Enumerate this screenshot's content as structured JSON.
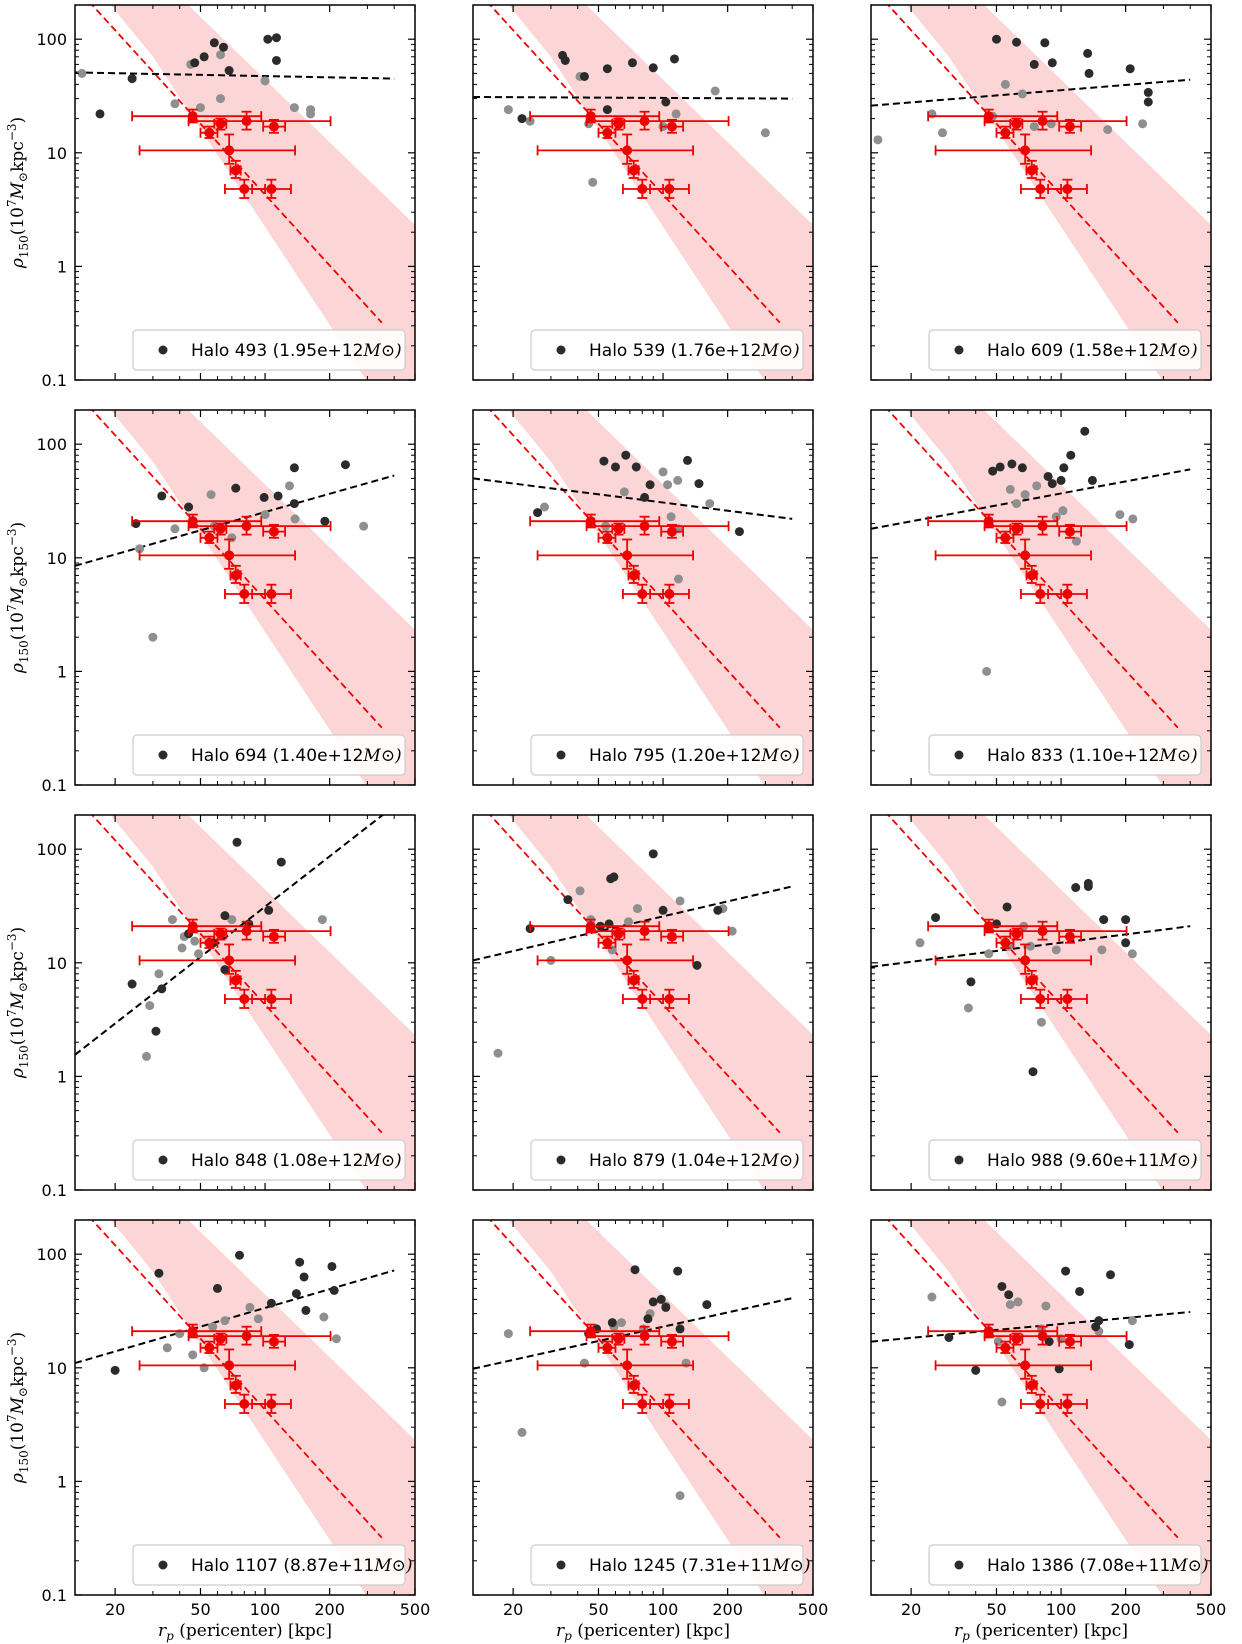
{
  "figure": {
    "colors": {
      "observed": "#ee0000",
      "observed_band": "#fcd6d6",
      "fit_line": "#000000",
      "point_dark": "#2b2b2b",
      "point_light": "#8f8f8f"
    }
  },
  "chart_data": {
    "type": "scatter",
    "x_scale": "log",
    "y_scale": "log",
    "xlim": [
      13,
      500
    ],
    "ylim": [
      0.1,
      200
    ],
    "xticks": [
      20,
      50,
      100,
      200,
      500
    ],
    "yticks": [
      0.1,
      1,
      10,
      100
    ],
    "xtick_labels": [
      "20",
      "50",
      "100",
      "200",
      "500"
    ],
    "ytick_labels": [
      "0.1",
      "1",
      "10",
      "100"
    ],
    "xlabel": "r_p (pericenter) [kpc]",
    "ylabel": "ρ150(10^7 M⊙ kpc^−3)",
    "observed_data": [
      {
        "x": 46,
        "y": 21,
        "xerr": [
          22,
          50
        ],
        "yerr": [
          2.5,
          3
        ]
      },
      {
        "x": 55,
        "y": 15,
        "xerr": [
          5,
          5
        ],
        "yerr": [
          1.5,
          2
        ]
      },
      {
        "x": 62,
        "y": 18,
        "xerr": [
          4,
          4
        ],
        "yerr": [
          2,
          2
        ]
      },
      {
        "x": 68,
        "y": 10.5,
        "xerr": [
          42,
          70
        ],
        "yerr": [
          2.5,
          4
        ]
      },
      {
        "x": 73,
        "y": 7,
        "xerr": [
          4,
          4
        ],
        "yerr": [
          1,
          1.5
        ]
      },
      {
        "x": 80,
        "y": 4.8,
        "xerr": [
          15,
          20
        ],
        "yerr": [
          0.8,
          1
        ]
      },
      {
        "x": 82,
        "y": 19,
        "xerr": [
          38,
          120
        ],
        "yerr": [
          3,
          4
        ]
      },
      {
        "x": 107,
        "y": 4.8,
        "xerr": [
          20,
          25
        ],
        "yerr": [
          0.8,
          1
        ]
      },
      {
        "x": 110,
        "y": 17,
        "xerr": [
          12,
          14
        ],
        "yerr": [
          2,
          2.5
        ]
      }
    ],
    "observed_fit": {
      "x1": 20,
      "y1": 120,
      "x2": 350,
      "y2": 0.32,
      "band_spread_end": 0.08
    },
    "panels": [
      {
        "label": "Halo 493 (1.95e+12",
        "unit": "M⊙)",
        "fit": {
          "y_at_13": 51,
          "y_at_400": 45
        },
        "dark": [
          [
            17,
            22
          ],
          [
            24,
            45
          ],
          [
            47,
            62
          ],
          [
            52,
            70
          ],
          [
            58,
            93
          ],
          [
            64,
            85
          ],
          [
            68,
            53
          ],
          [
            103,
            100
          ],
          [
            113,
            103
          ],
          [
            113,
            65
          ]
        ],
        "light": [
          [
            14,
            50
          ],
          [
            38,
            27
          ],
          [
            45,
            60
          ],
          [
            50,
            25
          ],
          [
            62,
            30
          ],
          [
            62,
            73
          ],
          [
            100,
            43
          ],
          [
            137,
            25
          ],
          [
            163,
            22
          ],
          [
            163,
            24
          ]
        ]
      },
      {
        "label": "Halo 539 (1.76e+12",
        "unit": "M⊙)",
        "fit": {
          "y_at_13": 31,
          "y_at_400": 30
        },
        "dark": [
          [
            22,
            20
          ],
          [
            34,
            72
          ],
          [
            35,
            65
          ],
          [
            43,
            47
          ],
          [
            55,
            55
          ],
          [
            72,
            62
          ],
          [
            90,
            56
          ],
          [
            103,
            28
          ],
          [
            113,
            67
          ],
          [
            55,
            24
          ]
        ],
        "light": [
          [
            19,
            24
          ],
          [
            24,
            19
          ],
          [
            41,
            47
          ],
          [
            45,
            18
          ],
          [
            47,
            5.5
          ],
          [
            62,
            19
          ],
          [
            100,
            17
          ],
          [
            115,
            22
          ],
          [
            175,
            35
          ],
          [
            300,
            15
          ]
        ]
      },
      {
        "label": "Halo 609 (1.58e+12",
        "unit": "M⊙)",
        "fit": {
          "y_at_13": 26,
          "y_at_400": 44
        },
        "dark": [
          [
            50,
            100
          ],
          [
            62,
            94
          ],
          [
            84,
            93
          ],
          [
            75,
            60
          ],
          [
            91,
            62
          ],
          [
            133,
            75
          ],
          [
            135,
            50
          ],
          [
            210,
            55
          ],
          [
            255,
            34
          ],
          [
            255,
            28
          ]
        ],
        "light": [
          [
            14,
            13
          ],
          [
            25,
            22
          ],
          [
            28,
            15
          ],
          [
            48,
            21
          ],
          [
            55,
            40
          ],
          [
            66,
            33
          ],
          [
            75,
            17
          ],
          [
            90,
            18
          ],
          [
            165,
            16
          ],
          [
            240,
            18
          ]
        ]
      },
      {
        "label": "Halo 694 (1.40e+12",
        "unit": "M⊙)",
        "fit": {
          "y_at_13": 8.5,
          "y_at_400": 53
        },
        "dark": [
          [
            25,
            20
          ],
          [
            33,
            35
          ],
          [
            44,
            28
          ],
          [
            73,
            41
          ],
          [
            99,
            34
          ],
          [
            115,
            35
          ],
          [
            137,
            62
          ],
          [
            190,
            21
          ],
          [
            237,
            66
          ],
          [
            137,
            30
          ]
        ],
        "light": [
          [
            26,
            12
          ],
          [
            30,
            2
          ],
          [
            38,
            18
          ],
          [
            56,
            36
          ],
          [
            58,
            19
          ],
          [
            70,
            15
          ],
          [
            130,
            43
          ],
          [
            138,
            22
          ],
          [
            288,
            19
          ],
          [
            100,
            24
          ]
        ]
      },
      {
        "label": "Halo 795 (1.20e+12",
        "unit": "M⊙)",
        "fit": {
          "y_at_13": 50,
          "y_at_400": 22
        },
        "dark": [
          [
            26,
            25
          ],
          [
            53,
            71
          ],
          [
            60,
            63
          ],
          [
            67,
            80
          ],
          [
            75,
            63
          ],
          [
            82,
            34
          ],
          [
            87,
            44
          ],
          [
            130,
            72
          ],
          [
            147,
            45
          ],
          [
            227,
            17
          ]
        ],
        "light": [
          [
            28,
            28
          ],
          [
            54,
            19
          ],
          [
            66,
            38
          ],
          [
            100,
            57
          ],
          [
            105,
            44
          ],
          [
            109,
            23
          ],
          [
            117,
            48
          ],
          [
            118,
            18
          ],
          [
            165,
            30
          ],
          [
            118,
            6.5
          ]
        ]
      },
      {
        "label": "Halo 833 (1.10e+12",
        "unit": "M⊙)",
        "fit": {
          "y_at_13": 18,
          "y_at_400": 60
        },
        "dark": [
          [
            48,
            58
          ],
          [
            52,
            63
          ],
          [
            59,
            67
          ],
          [
            66,
            62
          ],
          [
            87,
            52
          ],
          [
            91,
            45
          ],
          [
            100,
            48
          ],
          [
            103,
            62
          ],
          [
            111,
            80
          ],
          [
            129,
            130
          ],
          [
            140,
            48
          ]
        ],
        "light": [
          [
            45,
            1
          ],
          [
            58,
            40
          ],
          [
            62,
            30
          ],
          [
            68,
            36
          ],
          [
            77,
            43
          ],
          [
            95,
            23
          ],
          [
            102,
            26
          ],
          [
            118,
            14
          ],
          [
            188,
            24
          ],
          [
            216,
            22
          ]
        ]
      },
      {
        "label": "Halo 848 (1.08e+12",
        "unit": "M⊙)",
        "fit": {
          "y_at_13": 1.55,
          "y_at_400": 240
        },
        "dark": [
          [
            24,
            6.5
          ],
          [
            31,
            2.5
          ],
          [
            33,
            5.9
          ],
          [
            44,
            18
          ],
          [
            57,
            15
          ],
          [
            65,
            26
          ],
          [
            74,
            115
          ],
          [
            84,
            22
          ],
          [
            104,
            29
          ],
          [
            119,
            77
          ],
          [
            65,
            8.7
          ]
        ],
        "light": [
          [
            28,
            1.5
          ],
          [
            29,
            4.2
          ],
          [
            32,
            8
          ],
          [
            37,
            24
          ],
          [
            41,
            13.5
          ],
          [
            47,
            15.5
          ],
          [
            49,
            12
          ],
          [
            70,
            24
          ],
          [
            185,
            24
          ],
          [
            42,
            17
          ]
        ]
      },
      {
        "label": "Halo 879 (1.04e+12",
        "unit": "M⊙)",
        "fit": {
          "y_at_13": 10.5,
          "y_at_400": 47
        },
        "dark": [
          [
            24,
            20
          ],
          [
            36,
            36
          ],
          [
            51,
            21
          ],
          [
            57,
            55
          ],
          [
            59,
            57
          ],
          [
            90,
            91
          ],
          [
            100,
            29
          ],
          [
            144,
            9.5
          ],
          [
            180,
            29
          ],
          [
            56,
            22
          ]
        ],
        "light": [
          [
            17,
            1.6
          ],
          [
            30,
            10.5
          ],
          [
            41,
            43
          ],
          [
            46,
            24
          ],
          [
            58,
            13
          ],
          [
            69,
            23
          ],
          [
            76,
            30
          ],
          [
            120,
            35
          ],
          [
            190,
            30
          ],
          [
            210,
            19
          ]
        ]
      },
      {
        "label": "Halo 988 (9.60e+11",
        "unit": "M⊙)",
        "fit": {
          "y_at_13": 9.2,
          "y_at_400": 21
        },
        "dark": [
          [
            26,
            25
          ],
          [
            38,
            6.8
          ],
          [
            50,
            22
          ],
          [
            56,
            31
          ],
          [
            74,
            1.1
          ],
          [
            117,
            46
          ],
          [
            134,
            47
          ],
          [
            134,
            50
          ],
          [
            158,
            24
          ],
          [
            200,
            15
          ],
          [
            200,
            24
          ]
        ],
        "light": [
          [
            22,
            15
          ],
          [
            37,
            4
          ],
          [
            46,
            12
          ],
          [
            57,
            14
          ],
          [
            67,
            21
          ],
          [
            72,
            14
          ],
          [
            81,
            3
          ],
          [
            95,
            13
          ],
          [
            155,
            13
          ],
          [
            215,
            12
          ]
        ]
      },
      {
        "label": "Halo 1107 (8.87e+11",
        "unit": "M⊙)",
        "fit": {
          "y_at_13": 11,
          "y_at_400": 72
        },
        "dark": [
          [
            20,
            9.5
          ],
          [
            32,
            68
          ],
          [
            60,
            50
          ],
          [
            76,
            98
          ],
          [
            107,
            37
          ],
          [
            140,
            45
          ],
          [
            145,
            85
          ],
          [
            152,
            63
          ],
          [
            155,
            32
          ],
          [
            205,
            78
          ],
          [
            210,
            48
          ]
        ],
        "light": [
          [
            35,
            15
          ],
          [
            40,
            20
          ],
          [
            46,
            13
          ],
          [
            52,
            10
          ],
          [
            57,
            23
          ],
          [
            65,
            26
          ],
          [
            85,
            34
          ],
          [
            93,
            27
          ],
          [
            188,
            28
          ],
          [
            215,
            18
          ]
        ]
      },
      {
        "label": "Halo 1245 (7.31e+11",
        "unit": "M⊙)",
        "fit": {
          "y_at_13": 9.8,
          "y_at_400": 41
        },
        "dark": [
          [
            45,
            20
          ],
          [
            49,
            22
          ],
          [
            58,
            25
          ],
          [
            74,
            73
          ],
          [
            85,
            27
          ],
          [
            90,
            38
          ],
          [
            98,
            40
          ],
          [
            103,
            34
          ],
          [
            117,
            71
          ],
          [
            120,
            22
          ],
          [
            160,
            36
          ]
        ],
        "light": [
          [
            19,
            20
          ],
          [
            22,
            2.7
          ],
          [
            43,
            11
          ],
          [
            59,
            23
          ],
          [
            64,
            25
          ],
          [
            81,
            22
          ],
          [
            87,
            30
          ],
          [
            103,
            35
          ],
          [
            120,
            0.75
          ],
          [
            128,
            11
          ]
        ]
      },
      {
        "label": "Halo 1386 (7.08e+11",
        "unit": "M⊙)",
        "fit": {
          "y_at_13": 17,
          "y_at_400": 31
        },
        "dark": [
          [
            30,
            18.5
          ],
          [
            40,
            9.5
          ],
          [
            53,
            52
          ],
          [
            57,
            44
          ],
          [
            88,
            17
          ],
          [
            98,
            9.8
          ],
          [
            105,
            71
          ],
          [
            122,
            47
          ],
          [
            145,
            23
          ],
          [
            150,
            26
          ],
          [
            170,
            66
          ],
          [
            208,
            16
          ]
        ],
        "light": [
          [
            25,
            42
          ],
          [
            51,
            17
          ],
          [
            53,
            5
          ],
          [
            58,
            36
          ],
          [
            63,
            38
          ],
          [
            81,
            22
          ],
          [
            85,
            35
          ],
          [
            100,
            18
          ],
          [
            150,
            21
          ],
          [
            215,
            26
          ]
        ]
      }
    ]
  }
}
